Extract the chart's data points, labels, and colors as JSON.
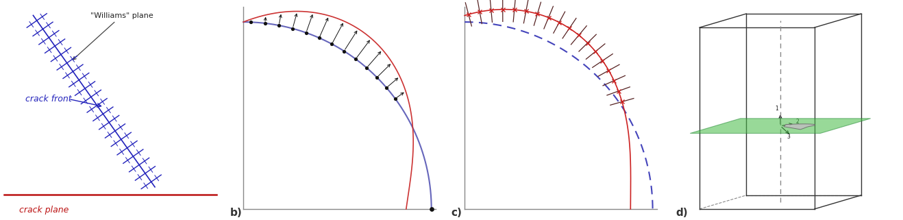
{
  "bg_color": "#ffffff",
  "panel_a": {
    "crack_front_color": "#2222bb",
    "crack_plane_color": "#bb1111",
    "label_crack_front": "crack front",
    "label_crack_plane": "crack plane",
    "label_williams": "\"Williams\" plane"
  },
  "panel_b": {
    "blue_curve_color": "#6666bb",
    "red_curve_color": "#cc3333",
    "dot_color": "#111111",
    "label": "b)"
  },
  "panel_c": {
    "red_curve_color": "#cc2222",
    "blue_dashed_color": "#4444bb",
    "tick_color": "#552222",
    "label": "c)"
  },
  "panel_d": {
    "box_edge_color": "#333333",
    "dashed_color": "#888888",
    "green_color": "#44bb44",
    "gray_color": "#aaaaaa",
    "label": "d)"
  },
  "axis_color": "#888888"
}
